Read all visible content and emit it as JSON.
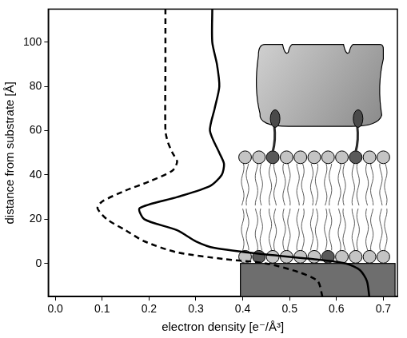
{
  "chart_data": {
    "type": "line",
    "x_label": "electron density [e⁻/Å³]",
    "y_label": "distance from substrate [Å]",
    "xlim": [
      -0.015,
      0.73
    ],
    "xticks": [
      {
        "value": 0,
        "label": "0.0"
      },
      0.1,
      0.2,
      0.3,
      0.4,
      0.5,
      0.6,
      0.7
    ],
    "ylim": [
      -15,
      115
    ],
    "yticks": [
      0,
      20,
      40,
      60,
      80,
      100
    ],
    "grid": false,
    "series": [
      {
        "color": "#000000",
        "line_style": "solid",
        "x": [
          0.67,
          0.665,
          0.65,
          0.62,
          0.55,
          0.45,
          0.34,
          0.3,
          0.26,
          0.19,
          0.18,
          0.26,
          0.33,
          0.355,
          0.36,
          0.35,
          0.33,
          0.34,
          0.35,
          0.345,
          0.335,
          0.335
        ],
        "y": [
          -15,
          -8,
          -3,
          0,
          2,
          4,
          7,
          10,
          15,
          20,
          25,
          30,
          35,
          40,
          45,
          50,
          60,
          70,
          80,
          90,
          100,
          115
        ]
      },
      {
        "color": "#000000",
        "line_style": "dashed",
        "x": [
          0.57,
          0.56,
          0.52,
          0.45,
          0.36,
          0.26,
          0.19,
          0.15,
          0.11,
          0.09,
          0.1,
          0.15,
          0.2,
          0.25,
          0.26,
          0.25,
          0.24,
          0.235,
          0.235,
          0.235
        ],
        "y": [
          -15,
          -8,
          -4,
          0,
          2,
          5,
          10,
          15,
          20,
          25,
          28,
          33,
          37,
          42,
          46,
          50,
          55,
          60,
          90,
          115
        ]
      }
    ]
  }
}
